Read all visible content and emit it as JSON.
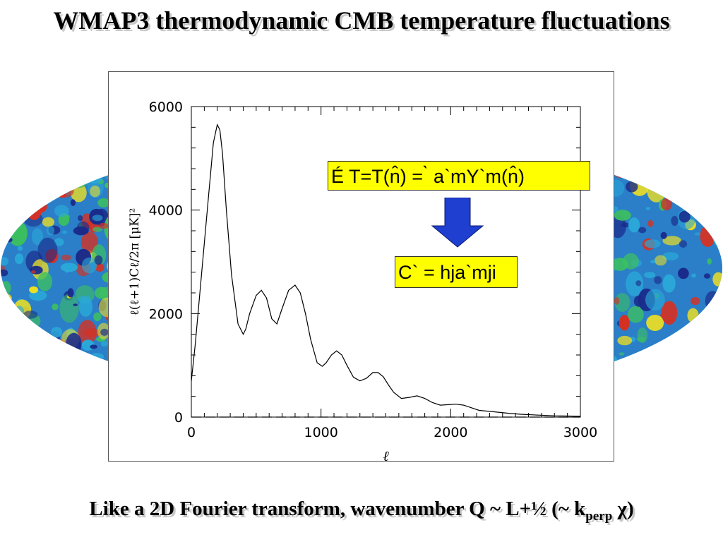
{
  "slide": {
    "title": "WMAP3 thermodynamic CMB temperature fluctuations",
    "caption_main": "Like a 2D Fourier transform, wavenumber Q ~ L+½ (~ k",
    "caption_sub": "perp",
    "caption_end": " χ)"
  },
  "formulas": {
    "top": "É T=T(n̂) =   ̀ a`mY`m(n̂)",
    "bottom": "C` = hja`mji"
  },
  "colors": {
    "title_shadow": "#c8c8c8",
    "formula_bg": "#ffff00",
    "arrow": "#1f3fd0",
    "map_blue_dark": "#1a2a8a",
    "map_cyan": "#2aa8d8",
    "map_green": "#3cc060",
    "map_yellow": "#f0e020",
    "map_red": "#d83020"
  },
  "background_image": "cmb-sky-map-mollweide",
  "chart_data": {
    "type": "line",
    "title": "",
    "xlabel": "ℓ",
    "ylabel": "ℓ(ℓ+1)Cℓ/2π   [μK]²",
    "xlim": [
      0,
      3000
    ],
    "ylim": [
      0,
      6000
    ],
    "xticks": [
      "0",
      "1000",
      "2000",
      "3000"
    ],
    "yticks": [
      "0",
      "2000",
      "4000",
      "6000"
    ],
    "grid": false,
    "series": [
      {
        "style": "solid",
        "x": [
          0,
          30,
          80,
          130,
          170,
          200,
          220,
          240,
          270,
          310,
          360,
          400,
          420,
          450,
          500,
          540,
          580,
          620,
          660,
          700,
          750,
          800,
          840,
          880,
          920,
          970,
          1010,
          1040,
          1080,
          1120,
          1160,
          1200,
          1250,
          1300,
          1350,
          1400,
          1440,
          1480,
          1520,
          1560,
          1620,
          1680,
          1740,
          1800,
          1860,
          1920,
          1980,
          2040,
          2100,
          2160,
          2220,
          2300,
          2380,
          2460,
          2540,
          2620,
          2700,
          2800,
          2900,
          3000
        ],
        "y": [
          700,
          1400,
          2800,
          4200,
          5300,
          5650,
          5550,
          5100,
          4000,
          2750,
          1800,
          1600,
          1700,
          2000,
          2350,
          2450,
          2300,
          1900,
          1800,
          2100,
          2450,
          2550,
          2400,
          2000,
          1500,
          1050,
          980,
          1050,
          1200,
          1280,
          1200,
          1000,
          770,
          700,
          750,
          860,
          860,
          780,
          620,
          480,
          360,
          380,
          410,
          360,
          280,
          230,
          240,
          250,
          230,
          180,
          130,
          110,
          90,
          70,
          55,
          45,
          35,
          25,
          20,
          15
        ]
      },
      {
        "style": "dashed",
        "x": [
          0,
          3000
        ],
        "y": [
          0,
          0
        ]
      }
    ]
  }
}
